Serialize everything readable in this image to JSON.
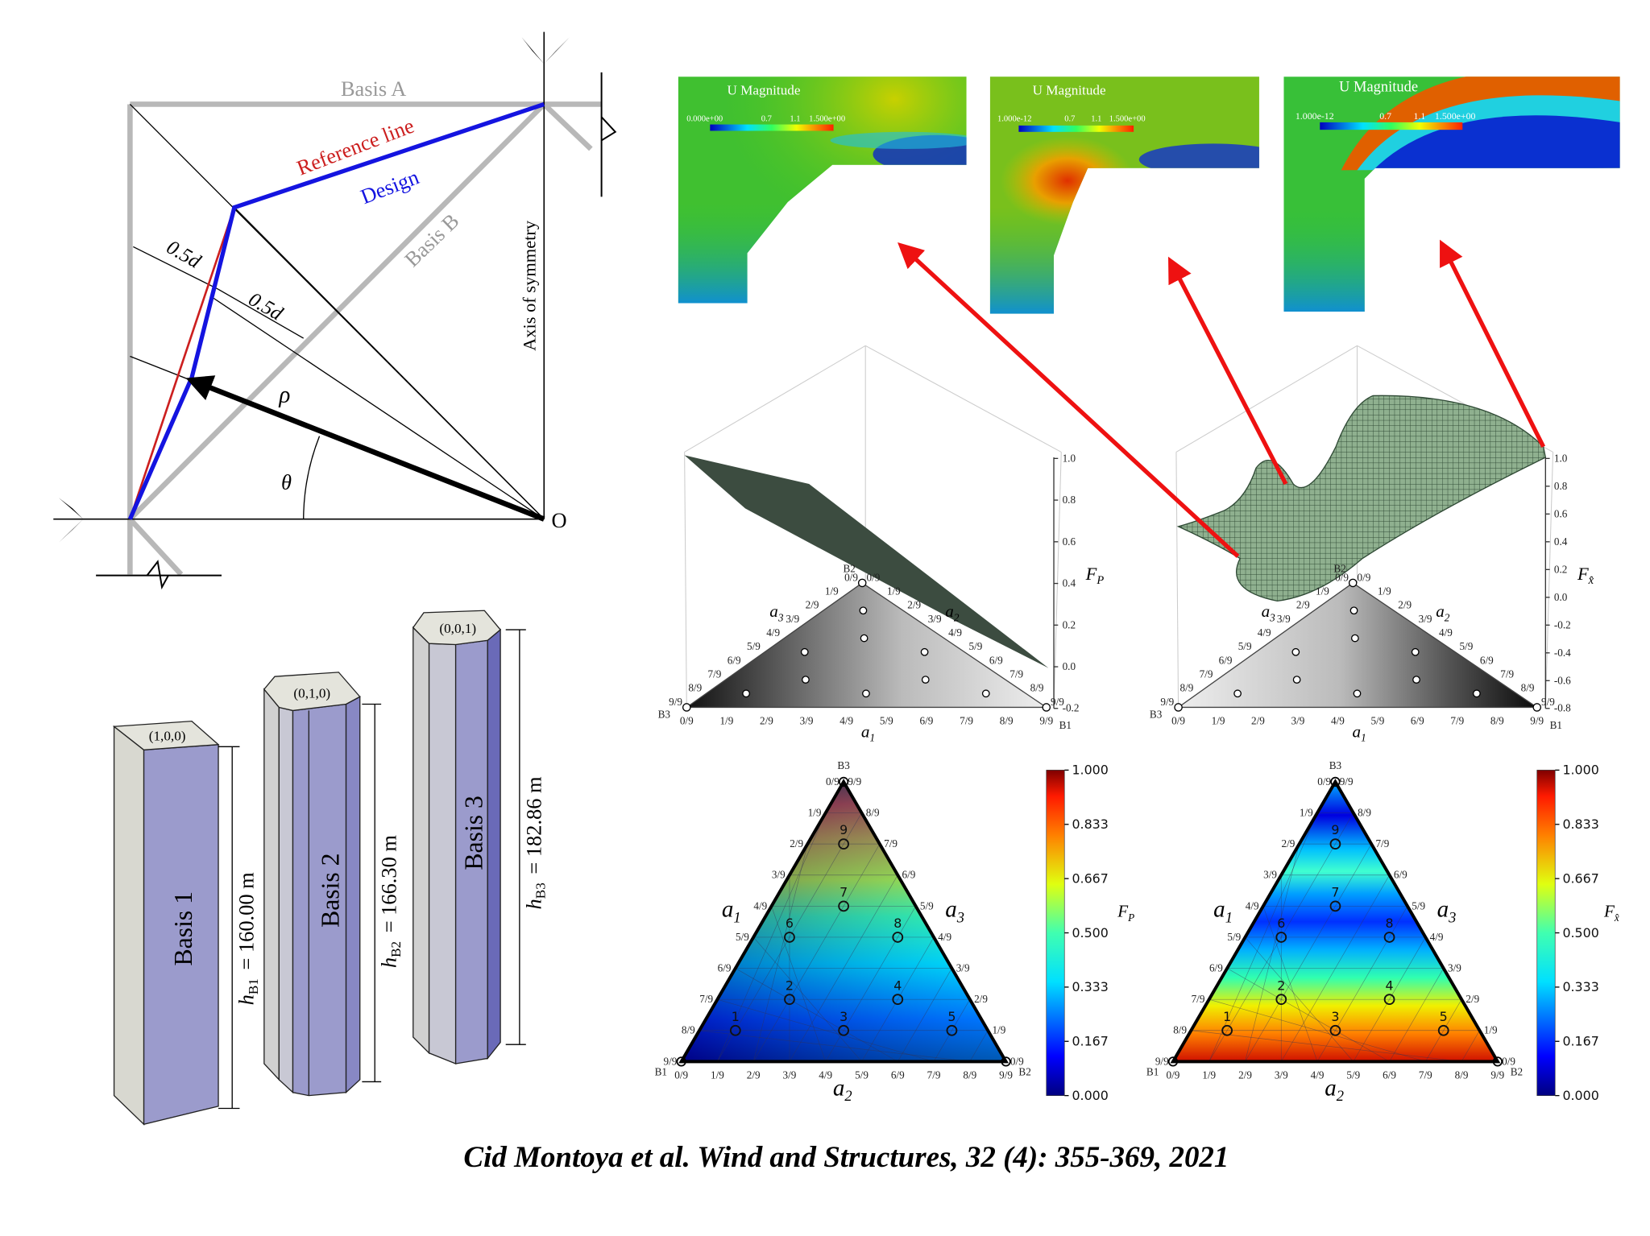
{
  "caption": "Cid Montoya et al. Wind and Structures, 32 (4): 355-369, 2021",
  "geometry_diagram": {
    "basis_a": "Basis A",
    "basis_b": "Basis B",
    "reference_line": "Reference line",
    "design": "Design",
    "axis_of_symmetry": "Axis of symmetry",
    "half_d_1": "0.5d",
    "half_d_2": "0.5d",
    "rho": "ρ",
    "theta": "θ",
    "origin": "O",
    "colors": {
      "basis": "#b8b8b8",
      "reference": "#cc1f1f",
      "design": "#1414e0"
    }
  },
  "prisms": [
    {
      "label": "Basis 1",
      "code": "(1,0,0)",
      "h_symbol": "h",
      "h_sub": "B1",
      "h_value": "= 160.00 m"
    },
    {
      "label": "Basis 2",
      "code": "(0,1,0)",
      "h_symbol": "h",
      "h_sub": "B2",
      "h_value": "= 166.30 m"
    },
    {
      "label": "Basis 3",
      "code": "(0,0,1)",
      "h_symbol": "h",
      "h_sub": "B3",
      "h_value": "= 182.86 m"
    }
  ],
  "cfd_panels": [
    {
      "title": "U Magnitude",
      "min": "0.000e+00",
      "t1": "0.7",
      "t2": "1.1",
      "max": "1.500e+00"
    },
    {
      "title": "U Magnitude",
      "min": "1.000e-12",
      "t1": "0.7",
      "t2": "1.1",
      "max": "1.500e+00"
    },
    {
      "title": "U Magnitude",
      "min": "1.000e-12",
      "t1": "0.7",
      "t2": "1.1",
      "max": "1.500e+00"
    }
  ],
  "surface_plots": [
    {
      "z_label": "F",
      "z_sub": "P",
      "z_ticks": [
        "1.0",
        "0.8",
        "0.6",
        "0.4",
        "0.2",
        "0.0",
        "-0.2"
      ]
    },
    {
      "z_label": "F",
      "z_sub": "x̂",
      "z_ticks": [
        "1.0",
        "0.8",
        "0.6",
        "0.4",
        "0.2",
        "0.0",
        "-0.2",
        "-0.4",
        "-0.6",
        "-0.8"
      ]
    }
  ],
  "ternary_common": {
    "vertices": {
      "b1": "B1",
      "b2": "B2",
      "b3": "B3"
    },
    "axes": {
      "a1": "a",
      "a1_sub": "1",
      "a2": "a",
      "a2_sub": "2",
      "a3": "a",
      "a3_sub": "3"
    },
    "fractions": [
      "0/9",
      "1/9",
      "2/9",
      "3/9",
      "4/9",
      "5/9",
      "6/9",
      "7/9",
      "8/9",
      "9/9"
    ],
    "design_points": [
      {
        "id": "1",
        "a": [
          "7/9",
          "1/9",
          "1/9"
        ]
      },
      {
        "id": "2",
        "a": [
          "5/9",
          "2/9",
          "2/9"
        ]
      },
      {
        "id": "3",
        "a": [
          "4/9",
          "4/9",
          "1/9"
        ]
      },
      {
        "id": "4",
        "a": [
          "2/9",
          "5/9",
          "2/9"
        ]
      },
      {
        "id": "5",
        "a": [
          "1/9",
          "7/9",
          "1/9"
        ]
      },
      {
        "id": "6",
        "a": [
          "4/9",
          "1/9",
          "4/9"
        ]
      },
      {
        "id": "7",
        "a": [
          "2/9",
          "2/9",
          "5/9"
        ]
      },
      {
        "id": "8",
        "a": [
          "1/9",
          "4/9",
          "4/9"
        ]
      },
      {
        "id": "9",
        "a": [
          "1/9",
          "1/9",
          "7/9"
        ]
      }
    ]
  },
  "chart_data": [
    {
      "type": "heatmap",
      "colorbar_label": "F_P",
      "colorbar_ticks": [
        "1.000",
        "0.833",
        "0.667",
        "0.500",
        "0.333",
        "0.167",
        "0.000"
      ],
      "range": [
        0,
        1
      ],
      "colormap": "jet",
      "trend": "increases from B1 (0) toward B3 (1)"
    },
    {
      "type": "heatmap",
      "colorbar_label": "F_x̂",
      "colorbar_ticks": [
        "1.000",
        "0.833",
        "0.667",
        "0.500",
        "0.333",
        "0.167",
        "0.000"
      ],
      "range": [
        0,
        1
      ],
      "colormap": "jet"
    }
  ]
}
